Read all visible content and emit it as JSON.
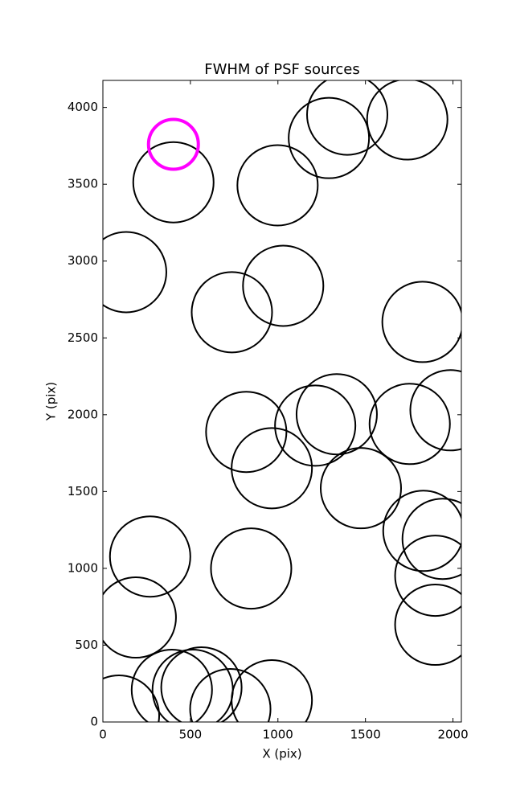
{
  "chart_data": {
    "type": "scatter",
    "title": "FWHM of PSF sources",
    "x_label": "X (pix)",
    "y_label": "Y (pix)",
    "xlim": [
      0,
      2048
    ],
    "ylim": [
      0,
      4176
    ],
    "xticks": [
      0,
      500,
      1000,
      1500,
      2000
    ],
    "yticks": [
      0,
      500,
      1000,
      1500,
      2000,
      2500,
      3000,
      3500,
      4000
    ],
    "color": "#000000",
    "x": [
      403,
      998,
      1291,
      1396,
      1739,
      133,
      737,
      1030,
      1826,
      819,
      965,
      1213,
      1336,
      1753,
      1986,
      1474,
      1831,
      1941,
      1899,
      1899,
      270,
      847,
      188,
      92,
      394,
      513,
      563,
      728,
      965
    ],
    "y": [
      3513,
      3493,
      3801,
      3953,
      3922,
      2928,
      2667,
      2839,
      2604,
      1888,
      1652,
      1929,
      2003,
      1940,
      2029,
      1522,
      1244,
      1192,
      952,
      633,
      1077,
      999,
      680,
      42,
      209,
      209,
      225,
      84,
      141
    ],
    "highlight": {
      "x": [
        403
      ],
      "y": [
        3760
      ],
      "color": "#ff00ff"
    }
  }
}
